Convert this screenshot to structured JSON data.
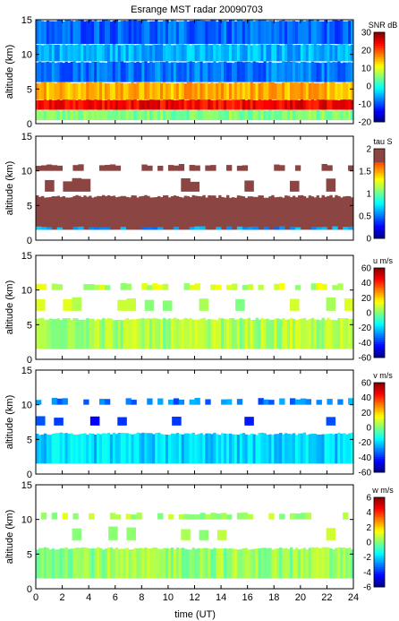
{
  "chart_data": [
    {
      "type": "heatmap",
      "title": "Esrange MST radar 20090703",
      "xlabel": "",
      "ylabel": "altitude (km)",
      "xlim": [
        0,
        24
      ],
      "ylim": [
        0,
        15
      ],
      "x_ticks": [
        0,
        2,
        4,
        6,
        8,
        10,
        12,
        14,
        16,
        18,
        20,
        22,
        24
      ],
      "y_ticks": [
        0,
        5,
        10,
        15
      ],
      "colorbar": {
        "label": "SNR dB",
        "range": [
          -20,
          30
        ],
        "ticks": [
          -20,
          -10,
          0,
          10,
          20,
          30
        ]
      },
      "layers": [
        {
          "name": "",
          "alt_range": [
            0.5,
            2.0
          ],
          "value": 5,
          "coverage": "continuous"
        },
        {
          "name": "",
          "alt_range": [
            2.0,
            3.5
          ],
          "value": 24,
          "coverage": "continuous"
        },
        {
          "name": "",
          "alt_range": [
            3.5,
            6.0
          ],
          "value": 15,
          "coverage": "continuous"
        },
        {
          "name": "",
          "alt_range": [
            6.0,
            9.0
          ],
          "value": -8,
          "coverage": "continuous"
        },
        {
          "name": "",
          "alt_range": [
            9.0,
            11.5
          ],
          "value": -5,
          "coverage": "continuous"
        },
        {
          "name": "",
          "alt_range": [
            11.5,
            15.0
          ],
          "value": -9,
          "coverage": "continuous"
        }
      ]
    },
    {
      "type": "heatmap",
      "xlabel": "",
      "ylabel": "altitude (km)",
      "xlim": [
        0,
        24
      ],
      "ylim": [
        0,
        15
      ],
      "x_ticks": [
        0,
        2,
        4,
        6,
        8,
        10,
        12,
        14,
        16,
        18,
        20,
        22,
        24
      ],
      "y_ticks": [
        0,
        5,
        10,
        15
      ],
      "colorbar": {
        "label": "tau S",
        "range": [
          0,
          2
        ],
        "ticks": [
          0,
          0.5,
          1,
          1.5,
          2
        ]
      },
      "layers": [
        {
          "name": "",
          "alt_range": [
            1.5,
            6.5
          ],
          "value": 1.9,
          "coverage": "continuous"
        },
        {
          "name": "",
          "alt_range": [
            1.5,
            2.0
          ],
          "value": 0.6,
          "coverage": "patchy"
        },
        {
          "name": "",
          "alt_range": [
            10.0,
            11.0
          ],
          "value": 1.9,
          "coverage": "patchy"
        },
        {
          "name": "",
          "alt_range": [
            7.0,
            9.0
          ],
          "value": 1.9,
          "coverage": "sparse"
        }
      ]
    },
    {
      "type": "heatmap",
      "xlabel": "",
      "ylabel": "altitude (km)",
      "xlim": [
        0,
        24
      ],
      "ylim": [
        0,
        15
      ],
      "x_ticks": [
        0,
        2,
        4,
        6,
        8,
        10,
        12,
        14,
        16,
        18,
        20,
        22,
        24
      ],
      "y_ticks": [
        0,
        5,
        10,
        15
      ],
      "colorbar": {
        "label": "u m/s",
        "range": [
          -60,
          60
        ],
        "ticks": [
          -60,
          -40,
          -20,
          0,
          20,
          40,
          60
        ]
      },
      "layers": [
        {
          "name": "",
          "alt_range": [
            1.5,
            6.0
          ],
          "value": 5,
          "coverage": "continuous"
        },
        {
          "name": "",
          "alt_range": [
            10.0,
            11.0
          ],
          "value": 8,
          "coverage": "patchy"
        },
        {
          "name": "",
          "alt_range": [
            7.0,
            9.0
          ],
          "value": 5,
          "coverage": "sparse"
        }
      ]
    },
    {
      "type": "heatmap",
      "xlabel": "",
      "ylabel": "altitude (km)",
      "xlim": [
        0,
        24
      ],
      "ylim": [
        0,
        15
      ],
      "x_ticks": [
        0,
        2,
        4,
        6,
        8,
        10,
        12,
        14,
        16,
        18,
        20,
        22,
        24
      ],
      "y_ticks": [
        0,
        5,
        10,
        15
      ],
      "colorbar": {
        "label": "v m/s",
        "range": [
          -60,
          60
        ],
        "ticks": [
          -60,
          -40,
          -20,
          0,
          20,
          40,
          60
        ]
      },
      "layers": [
        {
          "name": "",
          "alt_range": [
            1.5,
            6.0
          ],
          "value": -20,
          "coverage": "continuous"
        },
        {
          "name": "",
          "alt_range": [
            10.0,
            11.0
          ],
          "value": -30,
          "coverage": "patchy"
        },
        {
          "name": "",
          "alt_range": [
            7.0,
            8.5
          ],
          "value": -40,
          "coverage": "sparse"
        }
      ]
    },
    {
      "type": "heatmap",
      "xlabel": "time (UT)",
      "ylabel": "altitude (km)",
      "xlim": [
        0,
        24
      ],
      "ylim": [
        0,
        15
      ],
      "x_ticks": [
        0,
        2,
        4,
        6,
        8,
        10,
        12,
        14,
        16,
        18,
        20,
        22,
        24
      ],
      "y_ticks": [
        0,
        5,
        10,
        15
      ],
      "colorbar": {
        "label": "w m/s",
        "range": [
          -6,
          6
        ],
        "ticks": [
          -6,
          -4,
          -2,
          0,
          2,
          4,
          6
        ]
      },
      "layers": [
        {
          "name": "",
          "alt_range": [
            1.5,
            6.0
          ],
          "value": 0.3,
          "coverage": "continuous"
        },
        {
          "name": "",
          "alt_range": [
            10.0,
            11.0
          ],
          "value": 0.5,
          "coverage": "patchy"
        },
        {
          "name": "",
          "alt_range": [
            7.0,
            9.0
          ],
          "value": 0.3,
          "coverage": "sparse"
        }
      ]
    }
  ]
}
